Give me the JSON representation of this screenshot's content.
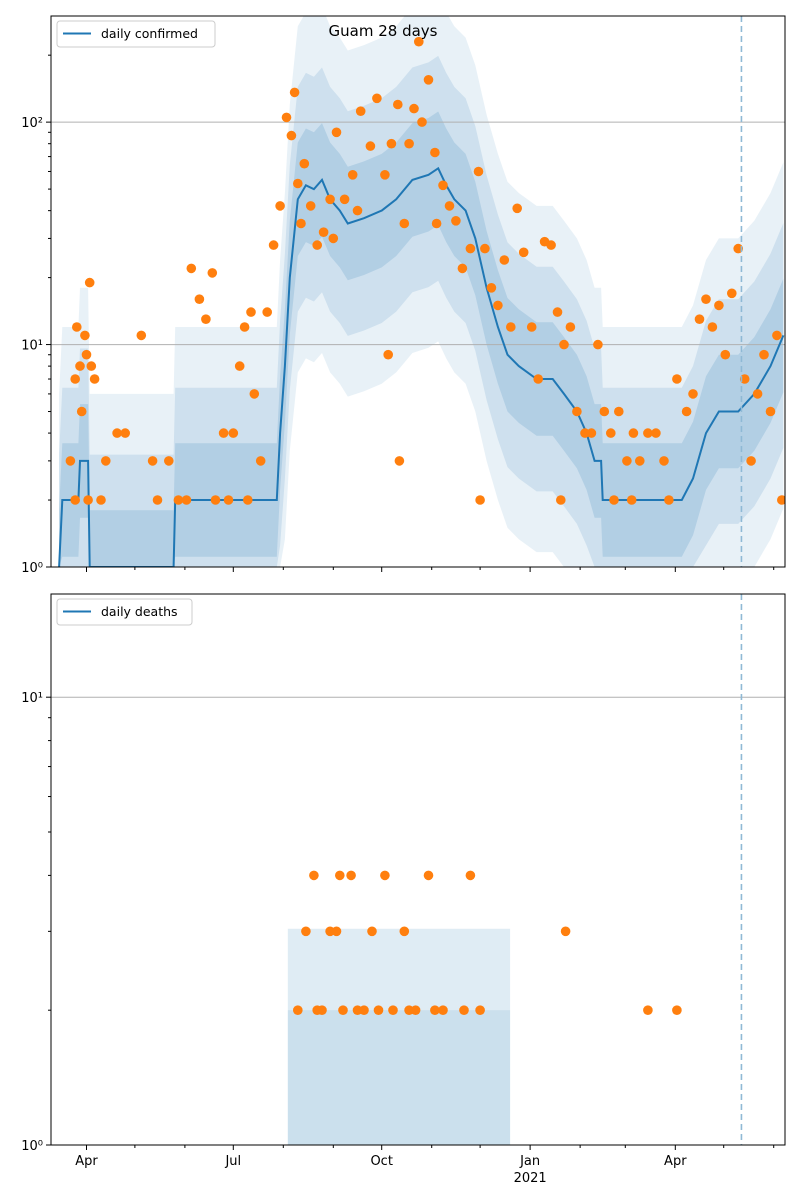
{
  "chart_data": [
    {
      "type": "line",
      "title": "Guam 28 days",
      "yscale": "log",
      "ylim": [
        1,
        300
      ],
      "x_tick_labels": [
        {
          "date": "2020-04-01",
          "label": "Apr",
          "sub": ""
        },
        {
          "date": "2020-07-01",
          "label": "Jul",
          "sub": ""
        },
        {
          "date": "2020-10-01",
          "label": "Oct",
          "sub": ""
        },
        {
          "date": "2021-01-01",
          "label": "Jan",
          "sub": "2021"
        },
        {
          "date": "2021-04-01",
          "label": "Apr",
          "sub": ""
        }
      ],
      "y_tick_labels": [
        {
          "value": 1,
          "label": "10⁰"
        },
        {
          "value": 10,
          "label": "10¹"
        },
        {
          "value": 100,
          "label": "10²"
        }
      ],
      "grid": "y",
      "legend": {
        "placement": "top-left",
        "entries": [
          "daily confirmed"
        ]
      },
      "marker_date": "2021-05-12",
      "series": [
        {
          "name": "daily confirmed",
          "kind": "line",
          "color": "#1f77b4",
          "points": [
            [
              "2020-03-15",
              1
            ],
            [
              "2020-03-17",
              2
            ],
            [
              "2020-03-27",
              2
            ],
            [
              "2020-03-28",
              3
            ],
            [
              "2020-04-02",
              3
            ],
            [
              "2020-04-03",
              1
            ],
            [
              "2020-05-25",
              1
            ],
            [
              "2020-05-26",
              2
            ],
            [
              "2020-07-28",
              2
            ],
            [
              "2020-07-30",
              4
            ],
            [
              "2020-08-02",
              8
            ],
            [
              "2020-08-05",
              20
            ],
            [
              "2020-08-10",
              45
            ],
            [
              "2020-08-15",
              52
            ],
            [
              "2020-08-20",
              50
            ],
            [
              "2020-08-25",
              55
            ],
            [
              "2020-08-30",
              45
            ],
            [
              "2020-09-05",
              40
            ],
            [
              "2020-09-10",
              35
            ],
            [
              "2020-09-20",
              37
            ],
            [
              "2020-10-01",
              40
            ],
            [
              "2020-10-10",
              45
            ],
            [
              "2020-10-20",
              55
            ],
            [
              "2020-10-30",
              58
            ],
            [
              "2020-11-05",
              62
            ],
            [
              "2020-11-10",
              52
            ],
            [
              "2020-11-15",
              45
            ],
            [
              "2020-11-22",
              40
            ],
            [
              "2020-11-28",
              30
            ],
            [
              "2020-12-05",
              18
            ],
            [
              "2020-12-12",
              12
            ],
            [
              "2020-12-18",
              9
            ],
            [
              "2020-12-25",
              8
            ],
            [
              "2021-01-05",
              7
            ],
            [
              "2021-01-15",
              7
            ],
            [
              "2021-01-22",
              6
            ],
            [
              "2021-01-30",
              5
            ],
            [
              "2021-02-05",
              4
            ],
            [
              "2021-02-10",
              3
            ],
            [
              "2021-02-14",
              3
            ],
            [
              "2021-02-15",
              2
            ],
            [
              "2021-04-05",
              2
            ],
            [
              "2021-04-12",
              2.5
            ],
            [
              "2021-04-20",
              4
            ],
            [
              "2021-04-28",
              5
            ],
            [
              "2021-05-10",
              5
            ],
            [
              "2021-05-20",
              6
            ],
            [
              "2021-05-30",
              8
            ],
            [
              "2021-06-07",
              11
            ]
          ]
        },
        {
          "name": "",
          "kind": "scatter",
          "color": "#ff7f0e",
          "points": [
            [
              "2020-03-22",
              3
            ],
            [
              "2020-03-25",
              7
            ],
            [
              "2020-03-26",
              12
            ],
            [
              "2020-03-28",
              8
            ],
            [
              "2020-03-29",
              5
            ],
            [
              "2020-03-31",
              11
            ],
            [
              "2020-04-01",
              9
            ],
            [
              "2020-04-03",
              19
            ],
            [
              "2020-04-04",
              8
            ],
            [
              "2020-04-06",
              7
            ],
            [
              "2020-03-25",
              2
            ],
            [
              "2020-04-02",
              2
            ],
            [
              "2020-04-10",
              2
            ],
            [
              "2020-04-13",
              3
            ],
            [
              "2020-04-20",
              4
            ],
            [
              "2020-04-25",
              4
            ],
            [
              "2020-05-05",
              11
            ],
            [
              "2020-05-12",
              3
            ],
            [
              "2020-05-22",
              3
            ],
            [
              "2020-05-28",
              2
            ],
            [
              "2020-06-05",
              22
            ],
            [
              "2020-06-10",
              16
            ],
            [
              "2020-06-14",
              13
            ],
            [
              "2020-06-18",
              21
            ],
            [
              "2020-06-25",
              4
            ],
            [
              "2020-07-05",
              8
            ],
            [
              "2020-07-08",
              12
            ],
            [
              "2020-07-12",
              14
            ],
            [
              "2020-07-14",
              6
            ],
            [
              "2020-07-18",
              3
            ],
            [
              "2020-07-22",
              14
            ],
            [
              "2020-07-26",
              28
            ],
            [
              "2020-07-30",
              42
            ],
            [
              "2020-08-03",
              105
            ],
            [
              "2020-08-06",
              87
            ],
            [
              "2020-08-08",
              136
            ],
            [
              "2020-08-10",
              53
            ],
            [
              "2020-08-14",
              65
            ],
            [
              "2020-08-18",
              42
            ],
            [
              "2020-08-22",
              28
            ],
            [
              "2020-08-26",
              32
            ],
            [
              "2020-08-30",
              45
            ],
            [
              "2020-09-03",
              90
            ],
            [
              "2020-09-08",
              45
            ],
            [
              "2020-09-13",
              58
            ],
            [
              "2020-09-18",
              112
            ],
            [
              "2020-09-24",
              78
            ],
            [
              "2020-09-28",
              128
            ],
            [
              "2020-10-03",
              58
            ],
            [
              "2020-10-07",
              80
            ],
            [
              "2020-10-11",
              120
            ],
            [
              "2020-10-15",
              35
            ],
            [
              "2020-10-18",
              80
            ],
            [
              "2020-10-21",
              115
            ],
            [
              "2020-10-24",
              230
            ],
            [
              "2020-10-26",
              100
            ],
            [
              "2020-10-30",
              155
            ],
            [
              "2020-11-03",
              73
            ],
            [
              "2020-11-08",
              52
            ],
            [
              "2020-11-12",
              42
            ],
            [
              "2020-11-16",
              36
            ],
            [
              "2020-11-20",
              22
            ],
            [
              "2020-11-25",
              27
            ],
            [
              "2020-11-30",
              60
            ],
            [
              "2020-12-04",
              27
            ],
            [
              "2020-12-08",
              18
            ],
            [
              "2020-12-12",
              15
            ],
            [
              "2020-12-16",
              24
            ],
            [
              "2020-12-20",
              12
            ],
            [
              "2020-12-24",
              41
            ],
            [
              "2020-12-28",
              26
            ],
            [
              "2021-01-02",
              12
            ],
            [
              "2021-01-06",
              7
            ],
            [
              "2021-01-10",
              29
            ],
            [
              "2021-01-14",
              28
            ],
            [
              "2021-01-18",
              14
            ],
            [
              "2021-01-22",
              10
            ],
            [
              "2021-01-26",
              12
            ],
            [
              "2021-01-30",
              5
            ],
            [
              "2021-02-04",
              4
            ],
            [
              "2021-02-08",
              4
            ],
            [
              "2021-02-12",
              10
            ],
            [
              "2021-02-16",
              5
            ],
            [
              "2021-02-20",
              4
            ],
            [
              "2021-02-25",
              5
            ],
            [
              "2021-03-02",
              3
            ],
            [
              "2021-03-06",
              4
            ],
            [
              "2021-03-10",
              3
            ],
            [
              "2021-03-15",
              4
            ],
            [
              "2021-03-20",
              4
            ],
            [
              "2021-03-25",
              3
            ],
            [
              "2021-04-02",
              7
            ],
            [
              "2021-04-08",
              5
            ],
            [
              "2021-04-12",
              6
            ],
            [
              "2021-04-16",
              13
            ],
            [
              "2021-04-20",
              16
            ],
            [
              "2021-04-24",
              12
            ],
            [
              "2021-04-28",
              15
            ],
            [
              "2021-05-02",
              9
            ],
            [
              "2021-05-06",
              17
            ],
            [
              "2021-05-10",
              27
            ],
            [
              "2021-05-14",
              7
            ],
            [
              "2021-05-18",
              3
            ],
            [
              "2021-05-22",
              6
            ],
            [
              "2021-05-26",
              9
            ],
            [
              "2021-05-30",
              5
            ],
            [
              "2021-06-03",
              11
            ],
            [
              "2021-06-06",
              2
            ],
            [
              "2021-01-20",
              2
            ],
            [
              "2021-02-22",
              2
            ],
            [
              "2021-03-05",
              2
            ],
            [
              "2021-03-28",
              2
            ],
            [
              "2020-12-01",
              2
            ],
            [
              "2020-10-12",
              3
            ],
            [
              "2020-10-05",
              9
            ],
            [
              "2020-08-12",
              35
            ],
            [
              "2020-09-01",
              30
            ],
            [
              "2020-09-16",
              40
            ],
            [
              "2020-11-04",
              35
            ],
            [
              "2020-07-01",
              4
            ],
            [
              "2020-06-20",
              2
            ],
            [
              "2020-06-28",
              2
            ],
            [
              "2020-07-10",
              2
            ],
            [
              "2020-05-15",
              2
            ],
            [
              "2020-06-02",
              2
            ]
          ]
        }
      ]
    },
    {
      "type": "line",
      "title": "",
      "yscale": "log",
      "ylim": [
        1,
        17
      ],
      "x_tick_labels": [
        {
          "date": "2020-04-01",
          "label": "Apr",
          "sub": ""
        },
        {
          "date": "2020-07-01",
          "label": "Jul",
          "sub": ""
        },
        {
          "date": "2020-10-01",
          "label": "Oct",
          "sub": ""
        },
        {
          "date": "2021-01-01",
          "label": "Jan",
          "sub": "2021"
        },
        {
          "date": "2021-04-01",
          "label": "Apr",
          "sub": ""
        }
      ],
      "y_tick_labels": [
        {
          "value": 1,
          "label": "10⁰"
        },
        {
          "value": 10,
          "label": "10¹"
        }
      ],
      "grid": "y",
      "legend": {
        "placement": "top-left",
        "entries": [
          "daily deaths"
        ]
      },
      "marker_date": "2021-05-12",
      "series": [
        {
          "name": "daily deaths",
          "kind": "line",
          "color": "#1f77b4",
          "points": []
        },
        {
          "name": "",
          "kind": "scatter",
          "color": "#ff7f0e",
          "points": [
            [
              "2020-08-10",
              2
            ],
            [
              "2020-08-15",
              3
            ],
            [
              "2020-08-20",
              4
            ],
            [
              "2020-08-22",
              2
            ],
            [
              "2020-08-25",
              2
            ],
            [
              "2020-08-30",
              3
            ],
            [
              "2020-09-03",
              3
            ],
            [
              "2020-09-05",
              4
            ],
            [
              "2020-09-07",
              2
            ],
            [
              "2020-09-12",
              4
            ],
            [
              "2020-09-16",
              2
            ],
            [
              "2020-09-20",
              2
            ],
            [
              "2020-09-25",
              3
            ],
            [
              "2020-09-29",
              2
            ],
            [
              "2020-10-03",
              4
            ],
            [
              "2020-10-08",
              2
            ],
            [
              "2020-10-15",
              3
            ],
            [
              "2020-10-18",
              2
            ],
            [
              "2020-10-22",
              2
            ],
            [
              "2020-10-30",
              4
            ],
            [
              "2020-11-03",
              2
            ],
            [
              "2020-11-08",
              2
            ],
            [
              "2020-11-21",
              2
            ],
            [
              "2020-11-25",
              4
            ],
            [
              "2020-12-01",
              2
            ],
            [
              "2021-01-23",
              3
            ],
            [
              "2021-03-15",
              2
            ],
            [
              "2021-04-02",
              2
            ]
          ]
        }
      ]
    }
  ]
}
